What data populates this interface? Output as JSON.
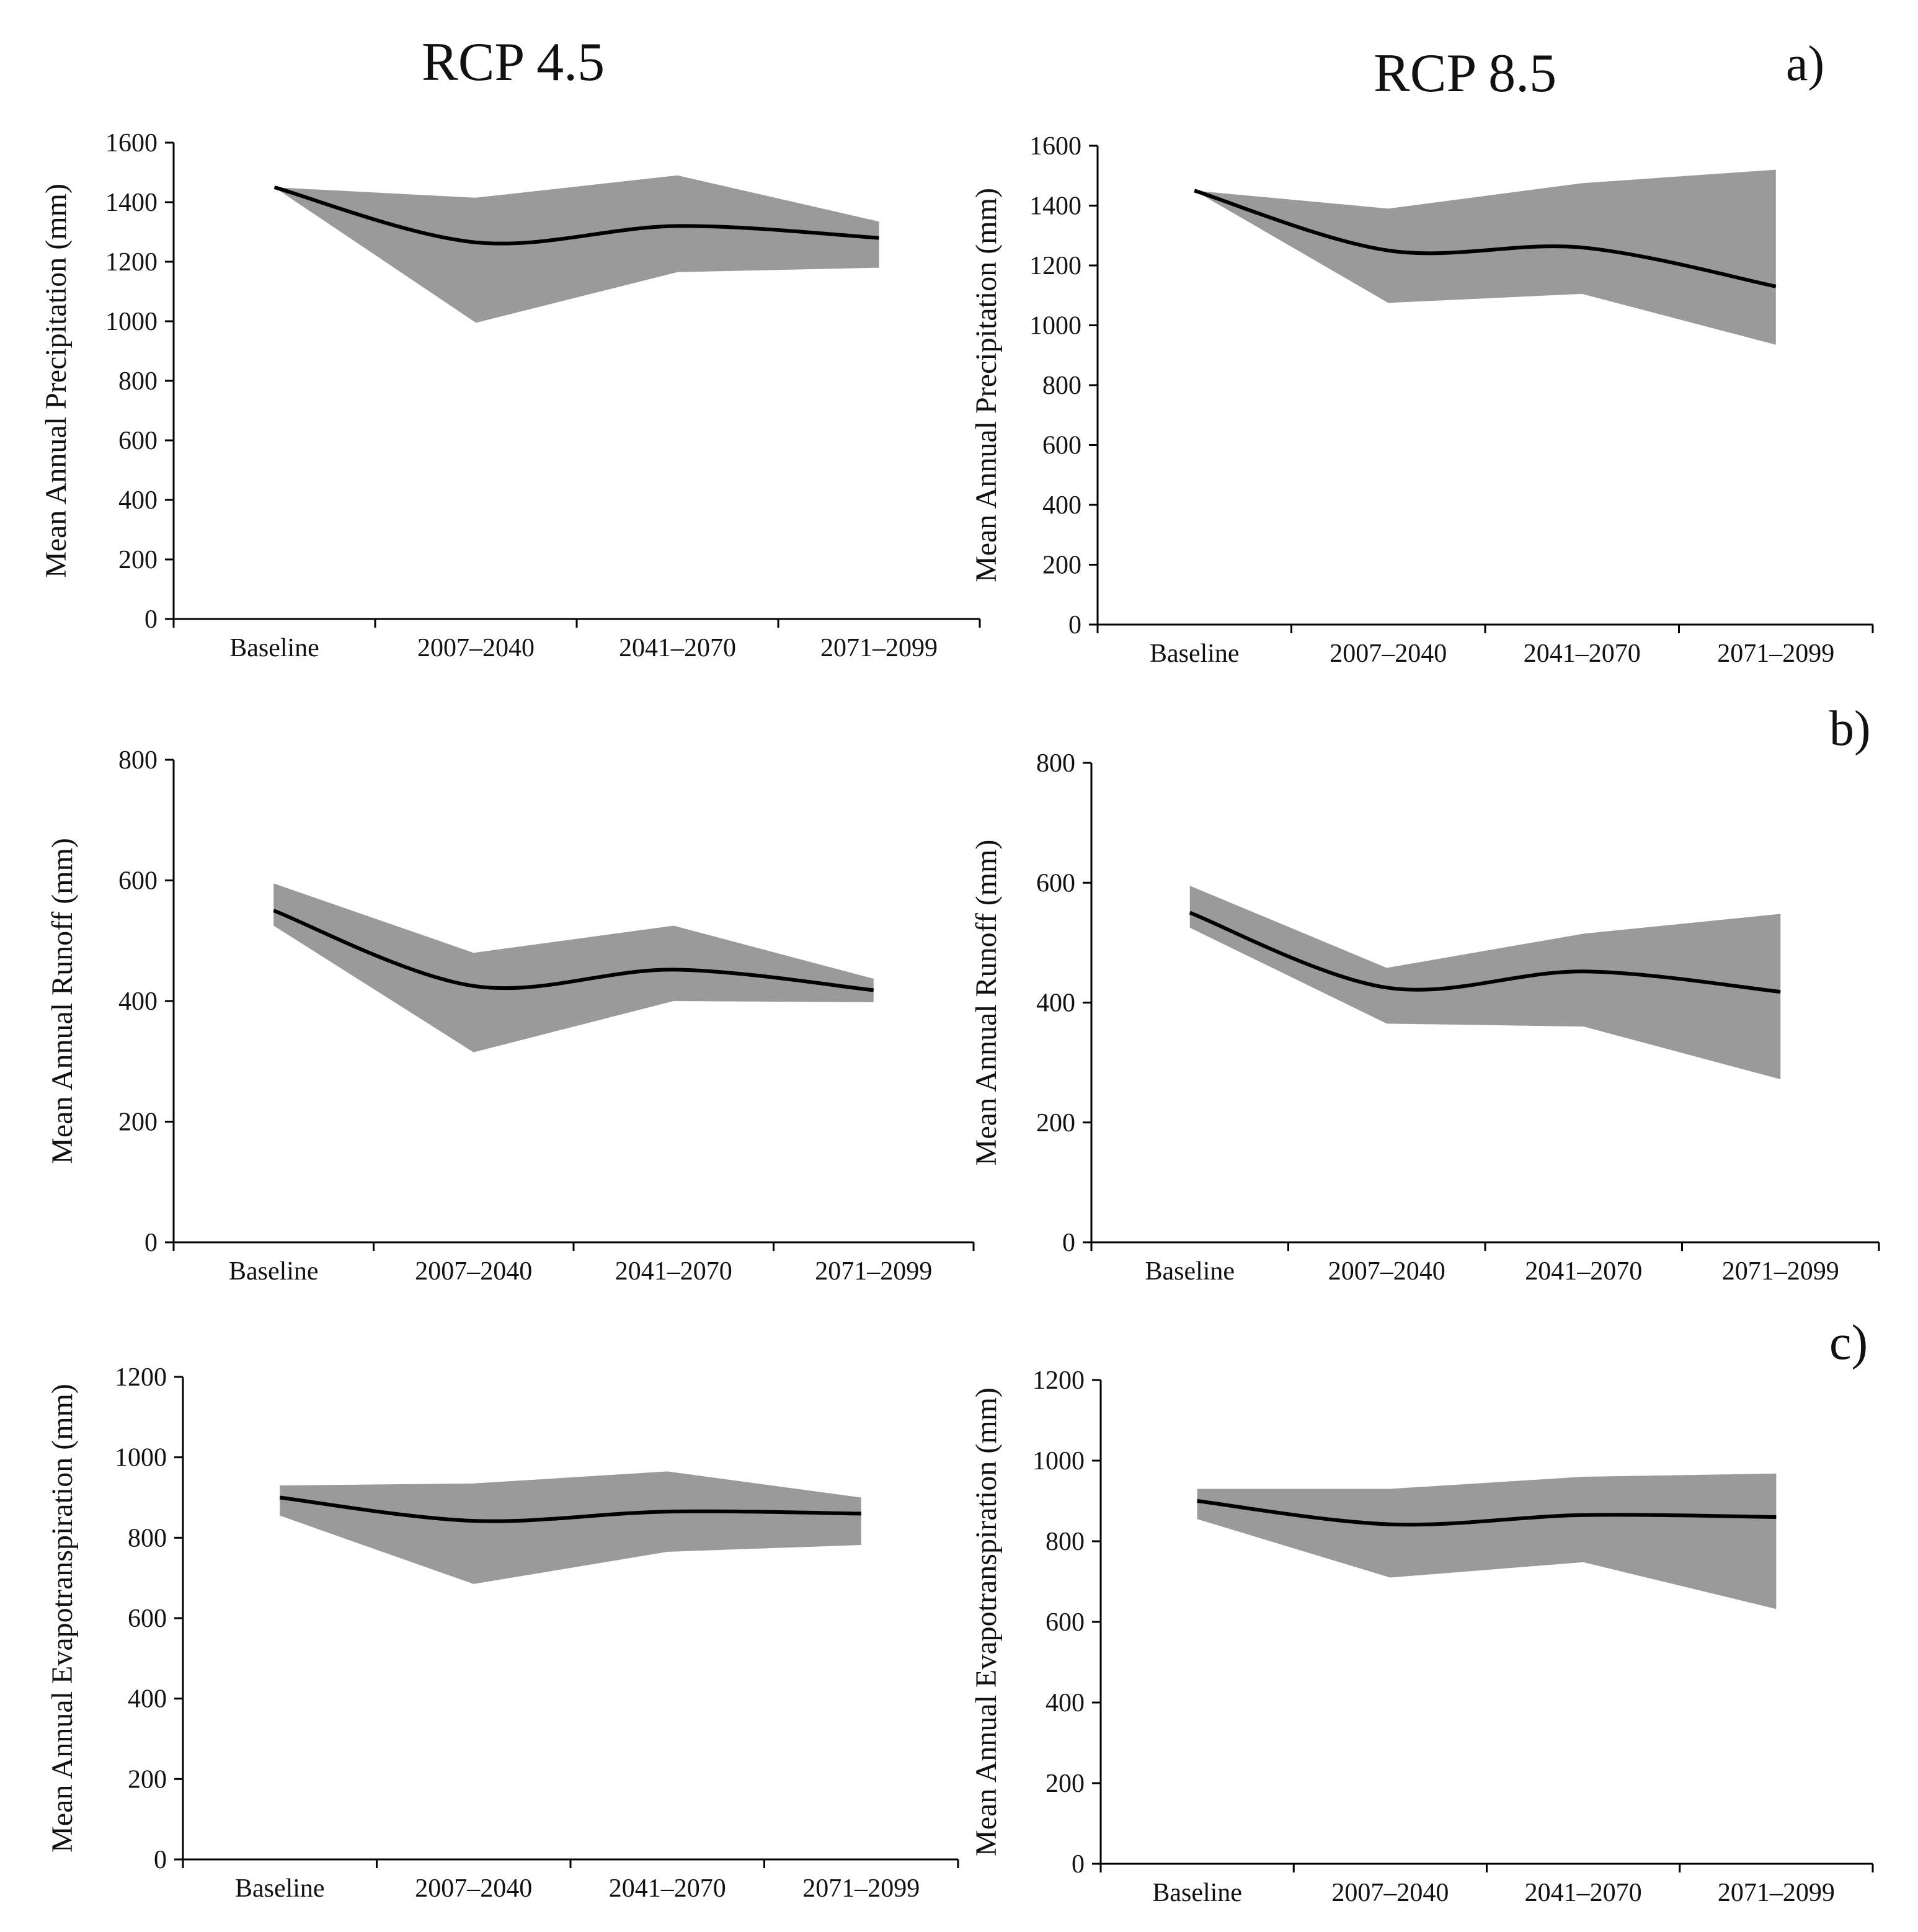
{
  "columns": [
    "RCP 4.5",
    "RCP 8.5"
  ],
  "panel_letters": [
    "a)",
    "b)",
    "c)"
  ],
  "chart_data": [
    {
      "id": "a-rcp45",
      "type": "area",
      "panel": "a)",
      "scenario": "RCP 4.5",
      "title": "",
      "xlabel": "",
      "ylabel": "Mean Annual Precipitation (mm)",
      "categories": [
        "Baseline",
        "2007–2040",
        "2041–2070",
        "2071–2099"
      ],
      "ylim": [
        0,
        1600
      ],
      "yticks": [
        0,
        200,
        400,
        600,
        800,
        1000,
        1200,
        1400,
        1600
      ],
      "series": [
        {
          "name": "mean",
          "values": [
            1450,
            1265,
            1320,
            1280
          ]
        },
        {
          "name": "max",
          "values": [
            1450,
            1415,
            1490,
            1335
          ]
        },
        {
          "name": "min",
          "values": [
            1450,
            995,
            1165,
            1180
          ]
        }
      ]
    },
    {
      "id": "a-rcp85",
      "type": "area",
      "panel": "a)",
      "scenario": "RCP 8.5",
      "title": "",
      "xlabel": "",
      "ylabel": "Mean Annual Precipitation (mm)",
      "categories": [
        "Baseline",
        "2007–2040",
        "2041–2070",
        "2071–2099"
      ],
      "ylim": [
        0,
        1600
      ],
      "yticks": [
        0,
        200,
        400,
        600,
        800,
        1000,
        1200,
        1400,
        1600
      ],
      "series": [
        {
          "name": "mean",
          "values": [
            1450,
            1250,
            1260,
            1130
          ]
        },
        {
          "name": "max",
          "values": [
            1450,
            1390,
            1475,
            1520
          ]
        },
        {
          "name": "min",
          "values": [
            1450,
            1075,
            1105,
            935
          ]
        }
      ]
    },
    {
      "id": "b-rcp45",
      "type": "area",
      "panel": "b)",
      "scenario": "RCP 4.5",
      "title": "",
      "xlabel": "",
      "ylabel": "Mean Annual Runoff (mm)",
      "categories": [
        "Baseline",
        "2007–2040",
        "2041–2070",
        "2071–2099"
      ],
      "ylim": [
        0,
        800
      ],
      "yticks": [
        0,
        200,
        400,
        600,
        800
      ],
      "series": [
        {
          "name": "mean",
          "values": [
            550,
            425,
            452,
            418
          ]
        },
        {
          "name": "max",
          "values": [
            595,
            480,
            525,
            437
          ]
        },
        {
          "name": "min",
          "values": [
            525,
            315,
            400,
            398
          ]
        }
      ]
    },
    {
      "id": "b-rcp85",
      "type": "area",
      "panel": "b)",
      "scenario": "RCP 8.5",
      "title": "",
      "xlabel": "",
      "ylabel": "Mean Annual Runoff (mm)",
      "categories": [
        "Baseline",
        "2007–2040",
        "2041–2070",
        "2071–2099"
      ],
      "ylim": [
        0,
        800
      ],
      "yticks": [
        0,
        200,
        400,
        600,
        800
      ],
      "series": [
        {
          "name": "mean",
          "values": [
            550,
            425,
            452,
            418
          ]
        },
        {
          "name": "max",
          "values": [
            595,
            458,
            515,
            548
          ]
        },
        {
          "name": "min",
          "values": [
            525,
            365,
            360,
            272
          ]
        }
      ]
    },
    {
      "id": "c-rcp45",
      "type": "area",
      "panel": "c)",
      "scenario": "RCP 4.5",
      "title": "",
      "xlabel": "",
      "ylabel": "Mean Annual Evapotranspiration (mm)",
      "categories": [
        "Baseline",
        "2007–2040",
        "2041–2070",
        "2071–2099"
      ],
      "ylim": [
        0,
        1200
      ],
      "yticks": [
        0,
        200,
        400,
        600,
        800,
        1000,
        1200
      ],
      "series": [
        {
          "name": "mean",
          "values": [
            900,
            842,
            865,
            860
          ]
        },
        {
          "name": "max",
          "values": [
            930,
            935,
            965,
            900
          ]
        },
        {
          "name": "min",
          "values": [
            855,
            685,
            765,
            782
          ]
        }
      ]
    },
    {
      "id": "c-rcp85",
      "type": "area",
      "panel": "c)",
      "scenario": "RCP 8.5",
      "title": "",
      "xlabel": "",
      "ylabel": "Mean Annual Evapotranspiration (mm)",
      "categories": [
        "Baseline",
        "2007–2040",
        "2041–2070",
        "2071–2099"
      ],
      "ylim": [
        0,
        1200
      ],
      "yticks": [
        0,
        200,
        400,
        600,
        800,
        1000,
        1200
      ],
      "series": [
        {
          "name": "mean",
          "values": [
            900,
            842,
            865,
            860
          ]
        },
        {
          "name": "max",
          "values": [
            930,
            930,
            960,
            968
          ]
        },
        {
          "name": "min",
          "values": [
            855,
            710,
            748,
            632
          ]
        }
      ]
    }
  ],
  "colors": {
    "band": "#9a9a9a",
    "line": "#000000",
    "axis": "#000000"
  }
}
